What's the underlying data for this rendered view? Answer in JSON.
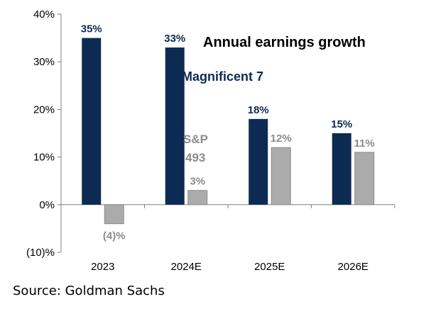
{
  "chart_data": {
    "type": "bar",
    "title": "Annual earnings growth",
    "categories": [
      "2023",
      "2024E",
      "2025E",
      "2026E"
    ],
    "series": [
      {
        "name": "Magnificent 7",
        "values": [
          35,
          33,
          18,
          15
        ],
        "labels": [
          "35%",
          "33%",
          "18%",
          "15%"
        ],
        "color": "#0d2b52"
      },
      {
        "name": "S&P 493",
        "name_lines": [
          "S&P",
          "493"
        ],
        "values": [
          -4,
          3,
          12,
          11
        ],
        "labels": [
          "(4)%",
          "3%",
          "12%",
          "11%"
        ],
        "color": "#ababab",
        "border": "#8c8c8c"
      }
    ],
    "ylim": [
      -10,
      40
    ],
    "yticks": [
      -10,
      0,
      10,
      20,
      30,
      40
    ],
    "ytick_labels": [
      "(10)%",
      "0%",
      "10%",
      "20%",
      "30%",
      "40%"
    ],
    "xlabel": "",
    "ylabel": "",
    "grid": false,
    "legend": "inline labels"
  },
  "source": "Source: Goldman Sachs"
}
